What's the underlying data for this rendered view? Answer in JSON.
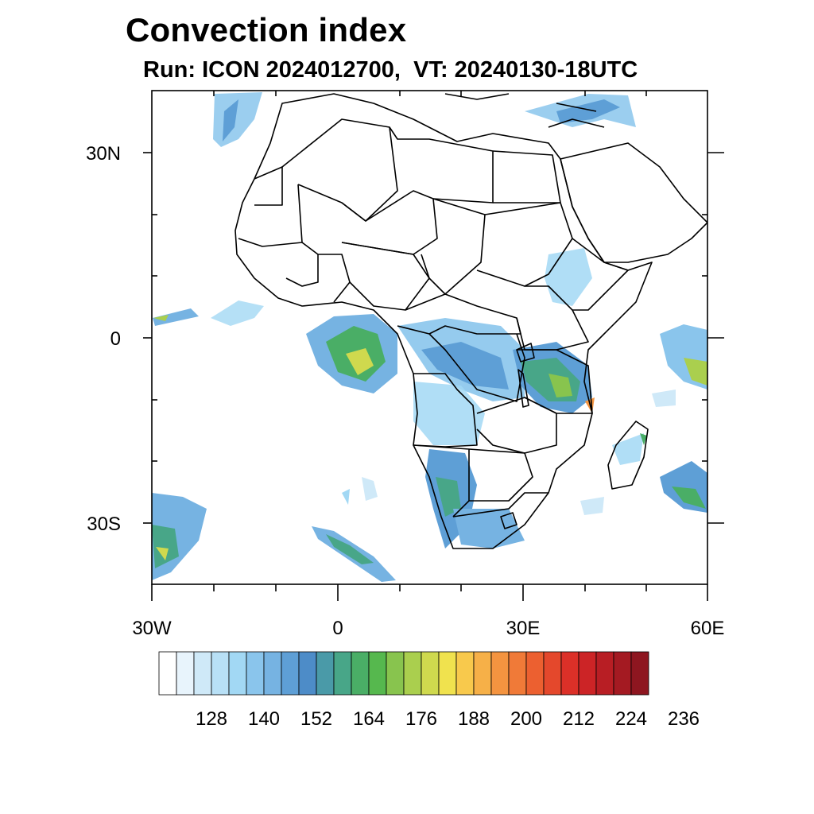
{
  "title": "Convection index",
  "subtitle": "Run: ICON 2024012700,  VT: 20240130-18UTC",
  "map": {
    "region": "Africa",
    "x_ticks": [
      "30W",
      "0",
      "30E",
      "60E"
    ],
    "y_ticks": [
      "30N",
      "0",
      "30S"
    ],
    "lon_range": [
      -30,
      60
    ],
    "lat_range": [
      -40,
      40
    ]
  },
  "colorbar": {
    "labels": [
      "128",
      "140",
      "152",
      "164",
      "176",
      "188",
      "200",
      "212",
      "224",
      "236"
    ],
    "colors": [
      "#ffffff",
      "#e8f4fc",
      "#cfe9f8",
      "#b8e0f6",
      "#a2d8f4",
      "#8ac5ec",
      "#76b3e2",
      "#5e9fd6",
      "#4d8cc8",
      "#4a9aa8",
      "#48a688",
      "#4aae66",
      "#56b84e",
      "#88c44e",
      "#aacf4e",
      "#cfd94e",
      "#f0e24e",
      "#f8c94c",
      "#f6b048",
      "#f49440",
      "#f07a38",
      "#ec6030",
      "#e4482c",
      "#dc3028",
      "#cc2426",
      "#b81e24",
      "#a41a22",
      "#8e1620"
    ]
  },
  "colors": {
    "coast": "#000000",
    "fill_light": "#9dcdf0",
    "fill_mid": "#5aa0d6",
    "fill_green": "#4fae6a",
    "fill_yellow": "#e8e04e"
  }
}
